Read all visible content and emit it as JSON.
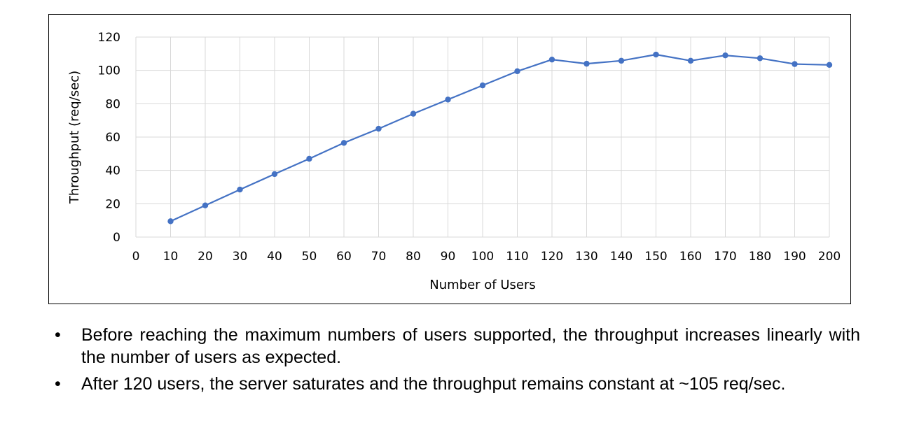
{
  "chart_data": {
    "type": "line",
    "title": "",
    "xlabel": "Number of Users",
    "ylabel": "Throughput (req/sec)",
    "xlim": [
      0,
      200
    ],
    "ylim": [
      0,
      120
    ],
    "x_ticks": [
      "0",
      "10",
      "20",
      "30",
      "40",
      "50",
      "60",
      "70",
      "80",
      "90",
      "100",
      "110",
      "120",
      "130",
      "140",
      "150",
      "160",
      "170",
      "180",
      "190",
      "200"
    ],
    "y_ticks": [
      "0",
      "20",
      "40",
      "60",
      "80",
      "100",
      "120"
    ],
    "grid": true,
    "legend": "none",
    "series": [
      {
        "color": "#4472C4",
        "x": [
          10,
          20,
          30,
          40,
          50,
          60,
          70,
          80,
          90,
          100,
          110,
          120,
          130,
          140,
          150,
          160,
          170,
          180,
          190,
          200
        ],
        "y": [
          9.5,
          19,
          28.5,
          37.8,
          47,
          56.5,
          65,
          74,
          82.5,
          91,
          99.5,
          106.5,
          104,
          105.8,
          109.5,
          105.8,
          109,
          107.3,
          103.8,
          103.3
        ]
      }
    ]
  },
  "bullets": [
    "Before reaching the maximum numbers of users supported, the throughput increases linearly with the number of users as expected.",
    "After 120 users, the server saturates and the throughput remains constant at ~105 req/sec."
  ],
  "bullet_symbol": "•"
}
